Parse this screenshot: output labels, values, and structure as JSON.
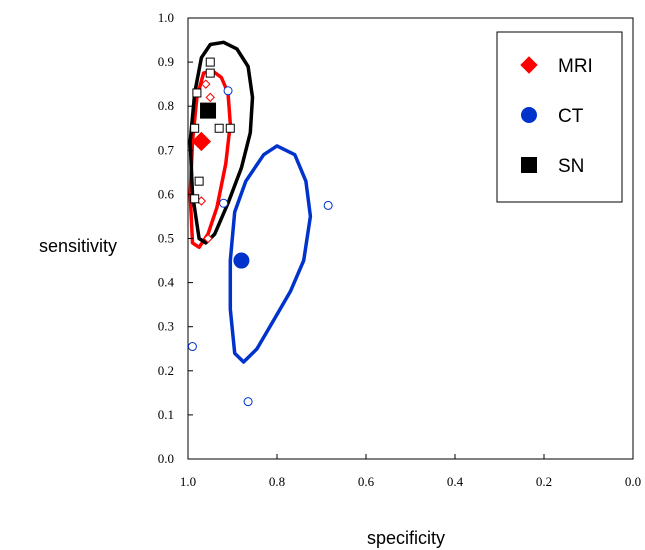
{
  "chart_data": {
    "type": "scatter",
    "title": "",
    "xlabel": "specificity",
    "ylabel": "sensitivity",
    "xlim": [
      1.0,
      0.0
    ],
    "ylim": [
      0.0,
      1.0
    ],
    "x_reversed": true,
    "grid": false,
    "legend_position": "top-right",
    "x_ticks": [
      "1.0",
      "0.8",
      "0.6",
      "0.4",
      "0.2",
      "0.0"
    ],
    "y_ticks": [
      "0.0",
      "0.1",
      "0.2",
      "0.3",
      "0.4",
      "0.5",
      "0.6",
      "0.7",
      "0.8",
      "0.9",
      "1.0"
    ],
    "series": [
      {
        "name": "MRI",
        "color": "#ff0000",
        "marker": "diamond",
        "summary_point": {
          "x": 0.97,
          "y": 0.72
        },
        "study_points": [
          {
            "x": 0.98,
            "y": 0.83
          },
          {
            "x": 0.95,
            "y": 0.82
          },
          {
            "x": 0.96,
            "y": 0.85
          },
          {
            "x": 0.97,
            "y": 0.585
          },
          {
            "x": 0.955,
            "y": 0.5
          }
        ],
        "region": [
          {
            "x": 0.99,
            "y": 0.49
          },
          {
            "x": 0.995,
            "y": 0.6
          },
          {
            "x": 0.99,
            "y": 0.72
          },
          {
            "x": 0.98,
            "y": 0.82
          },
          {
            "x": 0.965,
            "y": 0.875
          },
          {
            "x": 0.945,
            "y": 0.88
          },
          {
            "x": 0.925,
            "y": 0.865
          },
          {
            "x": 0.91,
            "y": 0.83
          },
          {
            "x": 0.905,
            "y": 0.76
          },
          {
            "x": 0.915,
            "y": 0.67
          },
          {
            "x": 0.935,
            "y": 0.57
          },
          {
            "x": 0.955,
            "y": 0.51
          },
          {
            "x": 0.975,
            "y": 0.48
          },
          {
            "x": 0.99,
            "y": 0.49
          }
        ]
      },
      {
        "name": "CT",
        "color": "#0033cc",
        "marker": "circle",
        "summary_point": {
          "x": 0.88,
          "y": 0.45
        },
        "study_points": [
          {
            "x": 0.99,
            "y": 0.255
          },
          {
            "x": 0.865,
            "y": 0.13
          },
          {
            "x": 0.685,
            "y": 0.575
          },
          {
            "x": 0.91,
            "y": 0.835
          },
          {
            "x": 0.92,
            "y": 0.58
          }
        ],
        "region": [
          {
            "x": 0.905,
            "y": 0.34
          },
          {
            "x": 0.905,
            "y": 0.45
          },
          {
            "x": 0.895,
            "y": 0.56
          },
          {
            "x": 0.87,
            "y": 0.63
          },
          {
            "x": 0.83,
            "y": 0.69
          },
          {
            "x": 0.8,
            "y": 0.71
          },
          {
            "x": 0.76,
            "y": 0.69
          },
          {
            "x": 0.735,
            "y": 0.63
          },
          {
            "x": 0.725,
            "y": 0.55
          },
          {
            "x": 0.74,
            "y": 0.45
          },
          {
            "x": 0.77,
            "y": 0.38
          },
          {
            "x": 0.81,
            "y": 0.31
          },
          {
            "x": 0.845,
            "y": 0.25
          },
          {
            "x": 0.875,
            "y": 0.22
          },
          {
            "x": 0.895,
            "y": 0.24
          },
          {
            "x": 0.905,
            "y": 0.34
          }
        ]
      },
      {
        "name": "SN",
        "color": "#000000",
        "marker": "square",
        "summary_point": {
          "x": 0.955,
          "y": 0.79
        },
        "study_points": [
          {
            "x": 0.95,
            "y": 0.9
          },
          {
            "x": 0.95,
            "y": 0.875
          },
          {
            "x": 0.98,
            "y": 0.83
          },
          {
            "x": 0.985,
            "y": 0.75
          },
          {
            "x": 0.93,
            "y": 0.75
          },
          {
            "x": 0.905,
            "y": 0.75
          },
          {
            "x": 0.975,
            "y": 0.63
          },
          {
            "x": 0.985,
            "y": 0.59
          }
        ],
        "region": [
          {
            "x": 0.975,
            "y": 0.5
          },
          {
            "x": 0.99,
            "y": 0.6
          },
          {
            "x": 0.995,
            "y": 0.72
          },
          {
            "x": 0.985,
            "y": 0.83
          },
          {
            "x": 0.97,
            "y": 0.91
          },
          {
            "x": 0.95,
            "y": 0.94
          },
          {
            "x": 0.92,
            "y": 0.945
          },
          {
            "x": 0.89,
            "y": 0.93
          },
          {
            "x": 0.865,
            "y": 0.89
          },
          {
            "x": 0.855,
            "y": 0.82
          },
          {
            "x": 0.86,
            "y": 0.74
          },
          {
            "x": 0.88,
            "y": 0.66
          },
          {
            "x": 0.91,
            "y": 0.58
          },
          {
            "x": 0.94,
            "y": 0.51
          },
          {
            "x": 0.96,
            "y": 0.49
          },
          {
            "x": 0.975,
            "y": 0.5
          }
        ]
      }
    ]
  }
}
